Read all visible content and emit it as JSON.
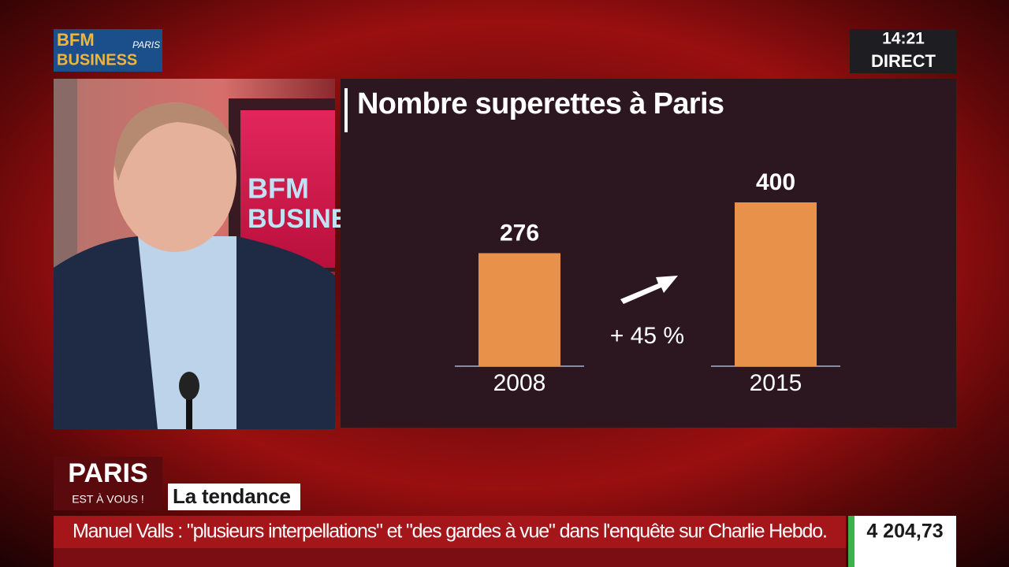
{
  "channel": {
    "logo_top": "BFM",
    "logo_city": "PARIS",
    "logo_bottom": "BUSINESS",
    "time": "14:21",
    "status": "DIRECT"
  },
  "studio": {
    "wall_top": "BFM",
    "wall_bottom": "BUSINE"
  },
  "chart_data": {
    "type": "bar",
    "title": "Nombre superettes à Paris",
    "categories": [
      "2008",
      "2015"
    ],
    "values": [
      276,
      400
    ],
    "color": "#e8914a",
    "annotation": "+ 45 %"
  },
  "program": {
    "title": "PARIS",
    "subtitle": "EST À VOUS !",
    "segment": "La tendance"
  },
  "ticker": {
    "headline": "Manuel Valls : \"plusieurs interpellations\" et \"des gardes à vue\" dans l'enquête sur Charlie Hebdo.",
    "index_value": "4 204,73"
  }
}
